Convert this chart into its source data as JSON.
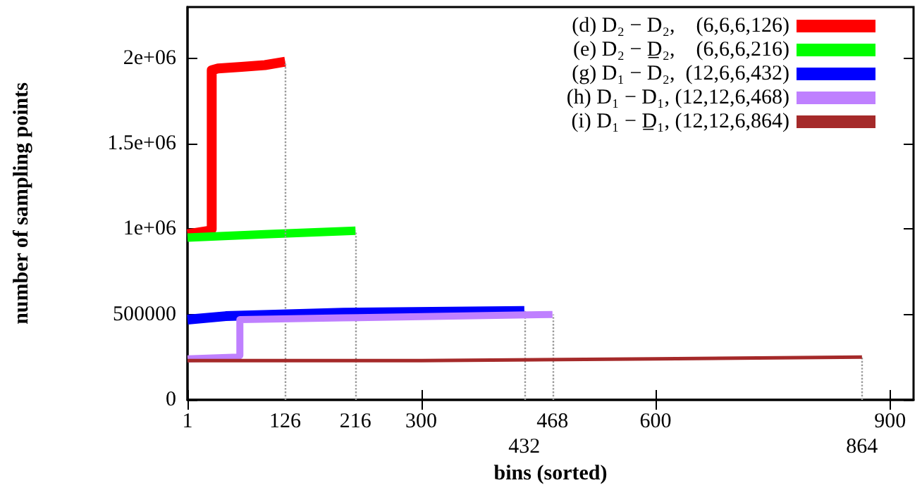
{
  "chart_data": {
    "type": "line",
    "xlabel": "bins (sorted)",
    "ylabel": "number of sampling points",
    "xlim": [
      1,
      930
    ],
    "xticks": [
      1,
      300,
      600,
      900
    ],
    "ylim": [
      0,
      2300000
    ],
    "yticks": [
      0,
      {
        "value": 500000,
        "label": "500000"
      },
      {
        "value": 1000000,
        "label": "1e+06"
      },
      {
        "value": 1500000,
        "label": "1.5e+06"
      },
      {
        "value": 2000000,
        "label": "2e+06"
      }
    ],
    "grid": false,
    "legend": "top right",
    "marker": "none",
    "line_style": "solid",
    "series": [
      {
        "name": "(d) D₂ − D₂,    (6,6,6,126)",
        "color": "#ff0000",
        "x": [
          1,
          28,
          32,
          32,
          40,
          70,
          100,
          126
        ],
        "values": [
          970000,
          990000,
          1000000,
          1930000,
          1940000,
          1950000,
          1960000,
          1980000
        ]
      },
      {
        "name": "(e) D₂ − D̲₂,    (6,6,6,216)",
        "color": "#00ff00",
        "x": [
          1,
          100,
          216
        ],
        "values": [
          950000,
          970000,
          990000
        ]
      },
      {
        "name": "(g) D₁ − D₂,  (12,6,6,432)",
        "color": "#0000ff",
        "x": [
          1,
          50,
          200,
          432
        ],
        "values": [
          470000,
          490000,
          510000,
          520000
        ]
      },
      {
        "name": "(h) D₁ − D₁, (12,12,6,468)",
        "color": "#bf80ff",
        "x": [
          1,
          65,
          68,
          68,
          200,
          468
        ],
        "values": [
          240000,
          250000,
          260000,
          470000,
          480000,
          500000
        ]
      },
      {
        "name": "(i) D₁ − D̲₁, (12,12,6,864)",
        "color": "#a52a2a",
        "x": [
          1,
          300,
          600,
          864
        ],
        "values": [
          230000,
          230000,
          240000,
          250000
        ]
      }
    ],
    "ref_lines": [
      {
        "axis": "x",
        "value": 126,
        "label": "126",
        "color": "#999999",
        "line_style": "dotted"
      },
      {
        "axis": "x",
        "value": 216,
        "label": "216",
        "color": "#999999",
        "line_style": "dotted"
      },
      {
        "axis": "x",
        "value": 432,
        "label": "432",
        "color": "#999999",
        "line_style": "dotted"
      },
      {
        "axis": "x",
        "value": 468,
        "label": "468",
        "color": "#999999",
        "line_style": "dotted"
      },
      {
        "axis": "x",
        "value": 864,
        "label": "864",
        "color": "#999999",
        "line_style": "dotted"
      }
    ]
  }
}
